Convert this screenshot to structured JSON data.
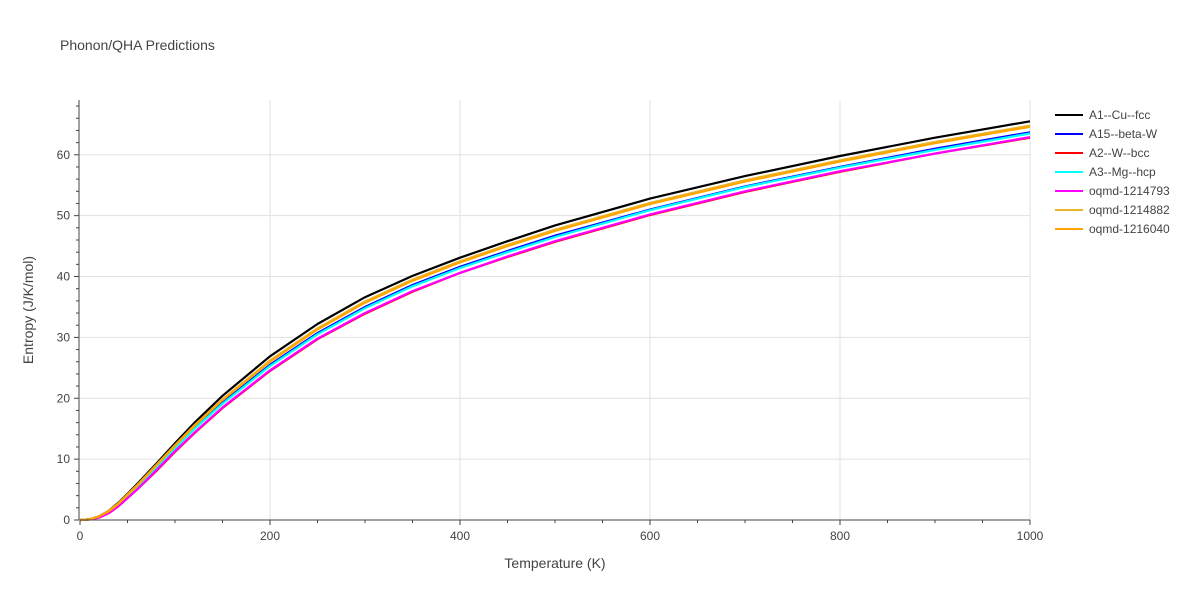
{
  "chart_data": {
    "type": "line",
    "title": "Phonon/QHA Predictions",
    "xlabel": "Temperature (K)",
    "ylabel": "Entropy (J/K/mol)",
    "xlim": [
      0,
      1000
    ],
    "ylim": [
      0,
      69
    ],
    "x_ticks": [
      0,
      200,
      400,
      600,
      800,
      1000
    ],
    "y_ticks": [
      0,
      10,
      20,
      30,
      40,
      50,
      60
    ],
    "grid": true,
    "legend_position": "right",
    "x": [
      0,
      10,
      20,
      30,
      40,
      50,
      60,
      80,
      100,
      120,
      150,
      200,
      250,
      300,
      350,
      400,
      450,
      500,
      600,
      700,
      800,
      900,
      1000
    ],
    "series": [
      {
        "name": "A1--Cu--fcc",
        "color": "#000000",
        "values": [
          0,
          0.1,
          0.6,
          1.5,
          2.8,
          4.3,
          5.9,
          9.2,
          12.6,
          15.9,
          20.4,
          26.9,
          32.2,
          36.6,
          40.1,
          43.1,
          45.8,
          48.4,
          52.8,
          56.5,
          59.8,
          62.8,
          65.5
        ]
      },
      {
        "name": "A15--beta-W",
        "color": "#0000ff",
        "values": [
          0,
          0.1,
          0.5,
          1.3,
          2.5,
          3.9,
          5.4,
          8.6,
          11.9,
          15.0,
          19.3,
          25.5,
          30.7,
          35.0,
          38.6,
          41.6,
          44.2,
          46.7,
          51.0,
          54.8,
          58.0,
          61.0,
          63.7
        ]
      },
      {
        "name": "A2--W--bcc",
        "color": "#ff0000",
        "values": [
          0,
          0.1,
          0.4,
          1.1,
          2.2,
          3.6,
          5.0,
          8.0,
          11.2,
          14.2,
          18.4,
          24.5,
          29.7,
          33.9,
          37.5,
          40.6,
          43.2,
          45.7,
          50.1,
          53.9,
          57.2,
          60.2,
          62.8
        ]
      },
      {
        "name": "A3--Mg--hcp",
        "color": "#00ffff",
        "values": [
          0,
          0.1,
          0.5,
          1.3,
          2.5,
          3.9,
          5.4,
          8.6,
          11.8,
          14.9,
          19.1,
          25.3,
          30.5,
          34.8,
          38.4,
          41.4,
          44.0,
          46.5,
          50.9,
          54.7,
          57.9,
          60.8,
          63.5
        ]
      },
      {
        "name": "oqmd-1214793",
        "color": "#ff00ff",
        "values": [
          0,
          0.1,
          0.4,
          1.1,
          2.2,
          3.6,
          5.0,
          8.1,
          11.3,
          14.3,
          18.5,
          24.6,
          29.8,
          34.0,
          37.6,
          40.6,
          43.3,
          45.8,
          50.2,
          54.0,
          57.3,
          60.2,
          62.9
        ]
      },
      {
        "name": "oqmd-1214882",
        "color": "#e8b52c",
        "values": [
          0,
          0.1,
          0.6,
          1.5,
          2.7,
          4.2,
          5.7,
          9.0,
          12.3,
          15.5,
          19.8,
          26.2,
          31.5,
          35.9,
          39.5,
          42.5,
          45.2,
          47.7,
          52.1,
          55.8,
          59.1,
          62.1,
          64.8
        ]
      },
      {
        "name": "oqmd-1216040",
        "color": "#ffa500",
        "values": [
          0,
          0.1,
          0.6,
          1.4,
          2.6,
          4.1,
          5.6,
          8.9,
          12.2,
          15.4,
          19.7,
          26.0,
          31.3,
          35.7,
          39.3,
          42.3,
          45.0,
          47.5,
          51.9,
          55.6,
          58.9,
          61.9,
          64.6
        ]
      }
    ]
  }
}
